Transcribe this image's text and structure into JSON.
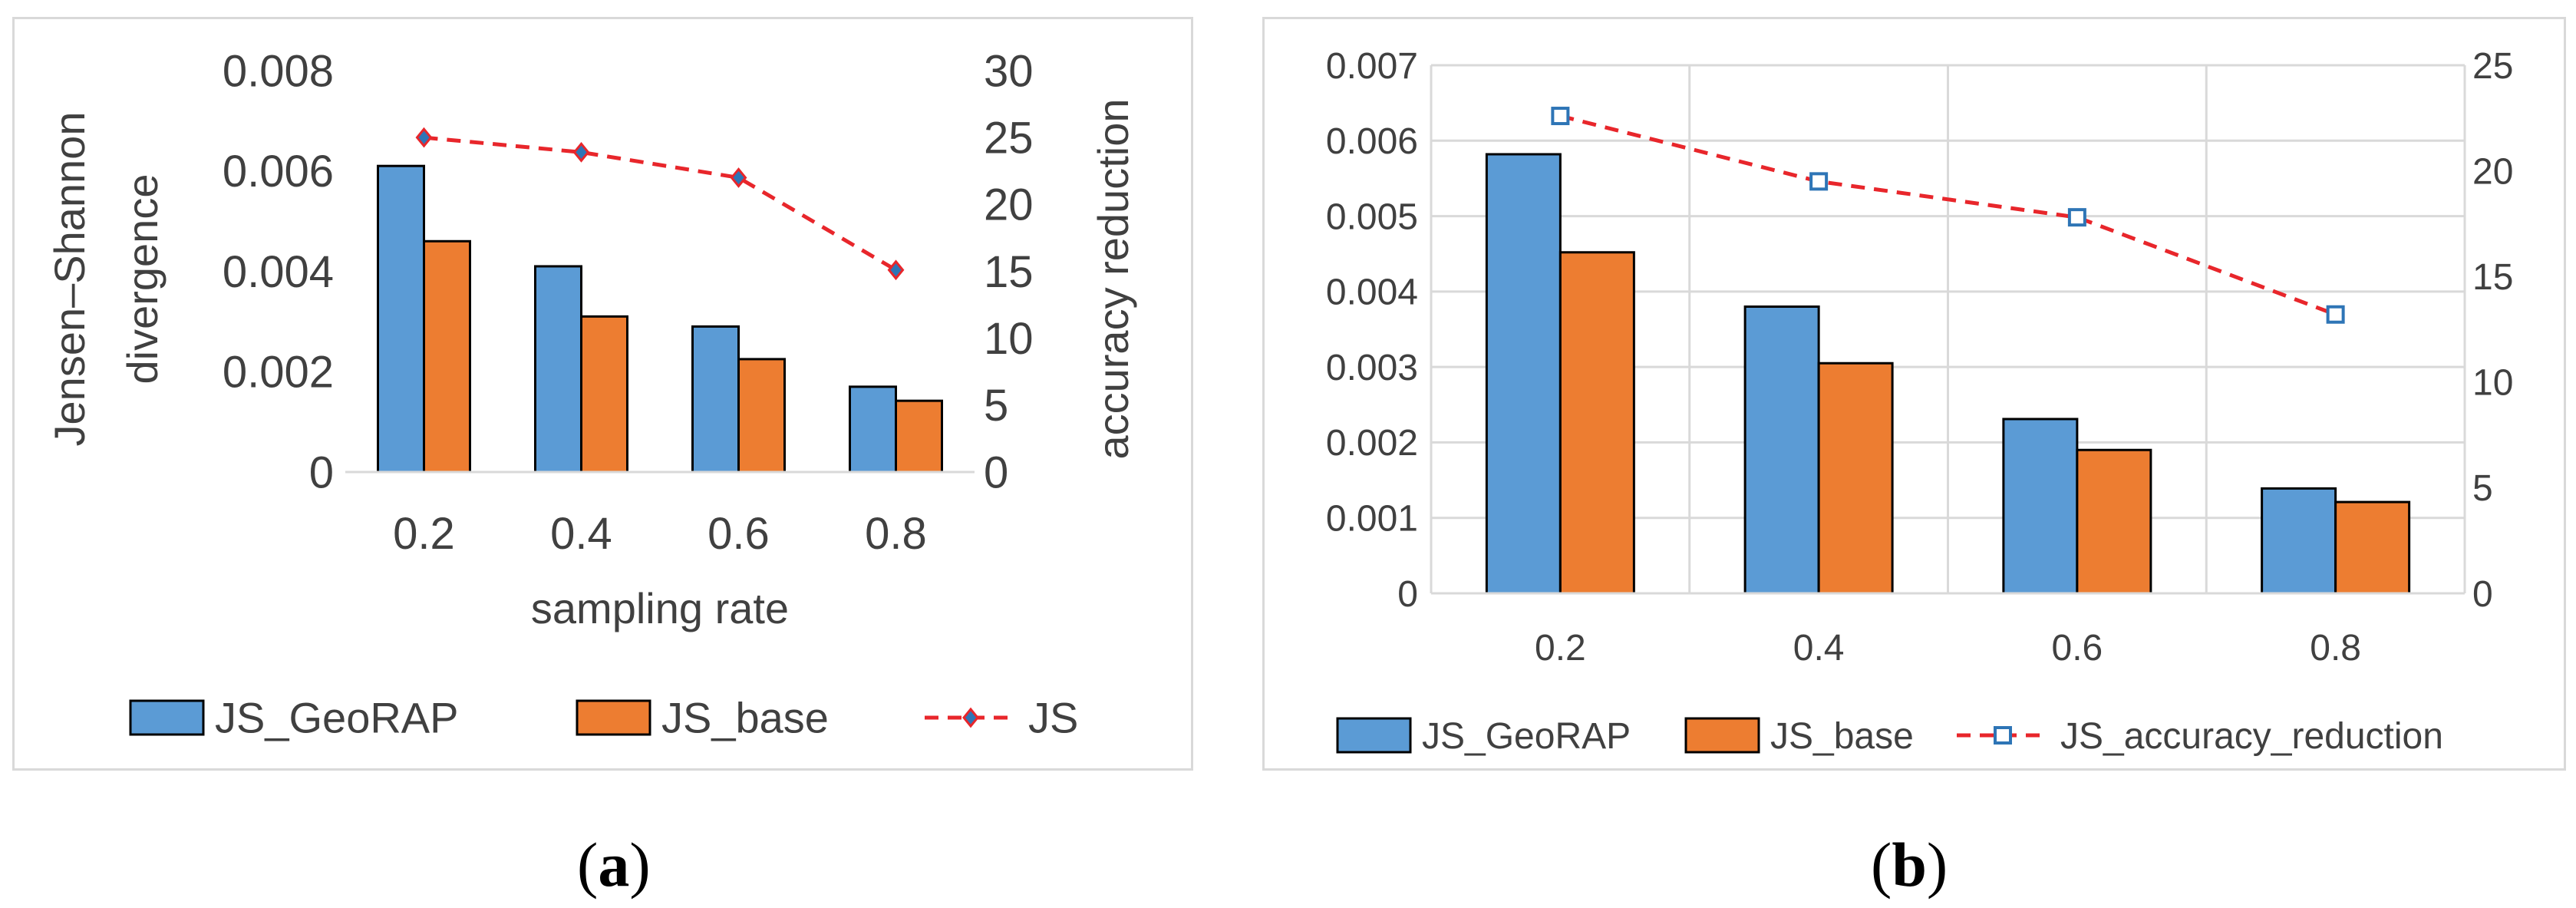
{
  "chart_data": [
    {
      "id": "a",
      "type": "bar",
      "categories": [
        "0.2",
        "0.4",
        "0.6",
        "0.8"
      ],
      "series": [
        {
          "name": "JS_GeoRAP",
          "type": "bar",
          "axis": "left",
          "color": "#5b9bd5",
          "values": [
            0.0061,
            0.0041,
            0.0029,
            0.0017
          ]
        },
        {
          "name": "JS_base",
          "type": "bar",
          "axis": "left",
          "color": "#ed7d31",
          "values": [
            0.0046,
            0.0031,
            0.00225,
            0.00142
          ]
        },
        {
          "name": "JS",
          "type": "line",
          "axis": "right",
          "color": "#e8262b",
          "marker": "diamond",
          "values": [
            25.0,
            23.9,
            22.0,
            15.1
          ]
        }
      ],
      "xlabel": "sampling rate",
      "ylabel": [
        "Jensen–Shannon",
        "divergence"
      ],
      "y2label": "accuracy reduction",
      "ylim": [
        0,
        0.008
      ],
      "y2lim": [
        0,
        30
      ],
      "yticks": [
        "0",
        "0.002",
        "0.004",
        "0.006",
        "0.008"
      ],
      "y2ticks": [
        "0",
        "5",
        "10",
        "15",
        "20",
        "25",
        "30"
      ],
      "grid": false,
      "legend_position": "bottom"
    },
    {
      "id": "b",
      "type": "bar",
      "categories": [
        "0.2",
        "0.4",
        "0.6",
        "0.8"
      ],
      "series": [
        {
          "name": "JS_GeoRAP",
          "type": "bar",
          "axis": "left",
          "color": "#5b9bd5",
          "values": [
            0.00582,
            0.0038,
            0.00231,
            0.00139
          ]
        },
        {
          "name": "JS_base",
          "type": "bar",
          "axis": "left",
          "color": "#ed7d31",
          "values": [
            0.00452,
            0.00305,
            0.0019,
            0.00121
          ]
        },
        {
          "name": "JS_accuracy_reduction",
          "type": "line",
          "axis": "right",
          "color": "#e8262b",
          "marker": "square",
          "marker_color": "#2e75b6",
          "values": [
            22.6,
            19.5,
            17.8,
            13.2
          ]
        }
      ],
      "xlabel": "",
      "ylabel": "",
      "y2label": "",
      "ylim": [
        0,
        0.007
      ],
      "y2lim": [
        0,
        25
      ],
      "yticks": [
        "0",
        "0.001",
        "0.002",
        "0.003",
        "0.004",
        "0.005",
        "0.006",
        "0.007"
      ],
      "y2ticks": [
        "0",
        "5",
        "10",
        "15",
        "20",
        "25"
      ],
      "grid": true,
      "legend_position": "bottom"
    }
  ],
  "captions": {
    "a": "a",
    "b": "b"
  }
}
